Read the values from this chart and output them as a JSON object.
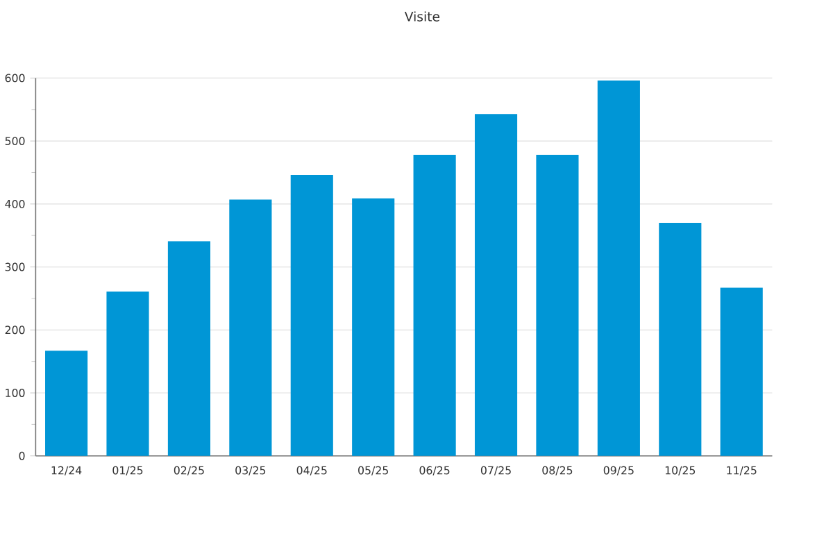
{
  "chart_data": {
    "type": "bar",
    "title": "Visite",
    "categories": [
      "12/24",
      "01/25",
      "02/25",
      "03/25",
      "04/25",
      "05/25",
      "06/25",
      "07/25",
      "08/25",
      "09/25",
      "10/25",
      "11/25"
    ],
    "values": [
      167,
      261,
      341,
      407,
      446,
      409,
      478,
      543,
      478,
      596,
      370,
      267
    ],
    "color": "#0096d6",
    "ylim": [
      0,
      600
    ],
    "yticks": [
      0,
      100,
      200,
      300,
      400,
      500,
      600
    ],
    "grid": "y"
  }
}
